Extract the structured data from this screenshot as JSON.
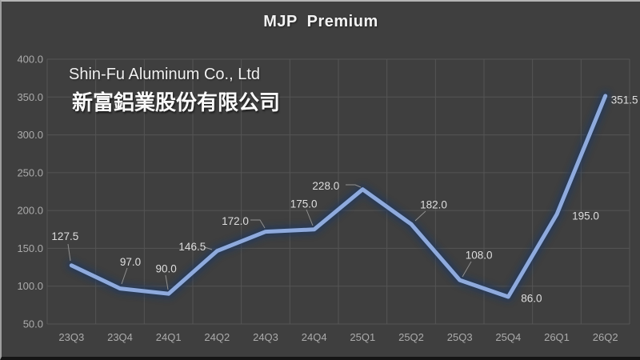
{
  "page": {
    "background": "#3F3F3F"
  },
  "chart_data": {
    "type": "line",
    "title": "MJP  Premium",
    "annotation": {
      "company_en": "Shin-Fu Aluminum Co., Ltd",
      "company_zh": "新富鋁業股份有限公司"
    },
    "categories": [
      "23Q3",
      "23Q4",
      "24Q1",
      "24Q2",
      "24Q3",
      "24Q4",
      "25Q1",
      "25Q2",
      "25Q3",
      "25Q4",
      "26Q1",
      "26Q2"
    ],
    "series": [
      {
        "name": "MJP Premium",
        "values": [
          127.5,
          97.0,
          90.0,
          146.5,
          172.0,
          175.0,
          228.0,
          182.0,
          108.0,
          86.0,
          195.0,
          351.5
        ]
      }
    ],
    "data_labels": [
      "127.5",
      "97.0",
      "90.0",
      "146.5",
      "172.0",
      "175.0",
      "228.0",
      "182.0",
      "108.0",
      "86.0",
      "195.0",
      "351.5"
    ],
    "ylim": [
      50,
      400
    ],
    "ytick_step": 50,
    "yticks": [
      "400.0",
      "350.0",
      "300.0",
      "250.0",
      "200.0",
      "150.0",
      "100.0",
      "50.0"
    ],
    "xlabel": "",
    "ylabel": "",
    "grid": {
      "horizontal": true,
      "vertical": true
    },
    "legend": "none",
    "colors": {
      "background": "#3F3F3F",
      "line": "#8FAADC",
      "glow": "#1F3864",
      "gridline": "#555555",
      "tick_label": "#ABABAB",
      "data_label": "#DEDEDE",
      "title": "#F2F2F2",
      "leader": "#909090"
    }
  }
}
